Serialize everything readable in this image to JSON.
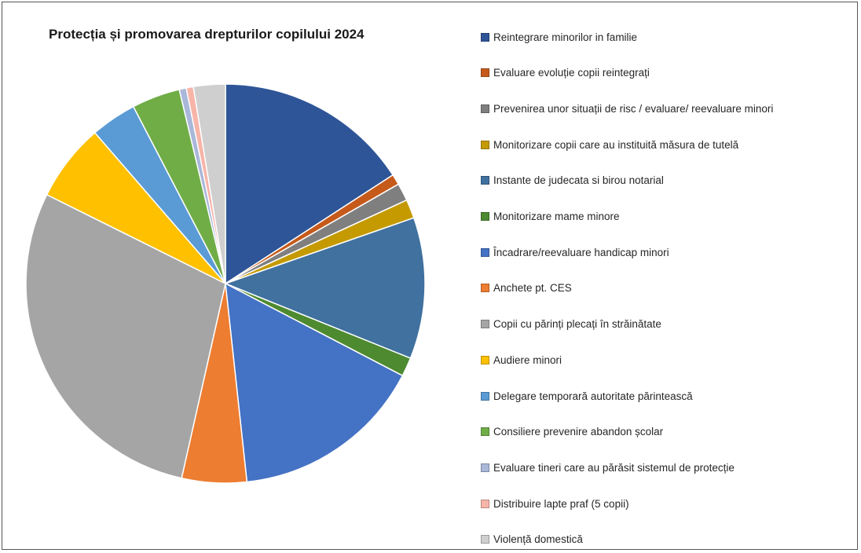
{
  "chart_data": {
    "type": "pie",
    "title": "Protecția și promovarea drepturilor copilului 2024",
    "series": [
      {
        "name": "Reintegrare minorilor in familie",
        "value": 16.6,
        "color": "#2e5597"
      },
      {
        "name": "Evaluare evoluție copii reintegrați",
        "value": 0.9,
        "color": "#c55a1b"
      },
      {
        "name": "Prevenirea unor situații de risc / evaluare/ reevaluare minori",
        "value": 1.5,
        "color": "#7f7f7f"
      },
      {
        "name": "Monitorizare copii care au instituită măsura de tutelă",
        "value": 1.6,
        "color": "#c49a00"
      },
      {
        "name": "Instante de judecata si birou notarial",
        "value": 12.0,
        "color": "#40719f"
      },
      {
        "name": "Monitorizare mame minore",
        "value": 1.6,
        "color": "#4e8a30"
      },
      {
        "name": "Încadrare/reevaluare handicap minori",
        "value": 16.4,
        "color": "#4472c4"
      },
      {
        "name": "Anchete pt. CES",
        "value": 5.5,
        "color": "#ed7d31"
      },
      {
        "name": "Copii cu părinți plecați în străinătate",
        "value": 30.2,
        "color": "#a5a5a5"
      },
      {
        "name": "Audiere minori",
        "value": 6.6,
        "color": "#ffc000"
      },
      {
        "name": "Delegare temporară autoritate părintească",
        "value": 3.9,
        "color": "#5b9bd5"
      },
      {
        "name": "Consiliere prevenire abandon școlar",
        "value": 4.1,
        "color": "#70ad47"
      },
      {
        "name": "Evaluare tineri care au părăsit sistemul de protecție",
        "value": 0.6,
        "color": "#a9b7d9"
      },
      {
        "name": "Distribuire lapte praf (5 copii)",
        "value": 0.6,
        "color": "#f7b4a8"
      },
      {
        "name": "Violență domestică",
        "value": 2.7,
        "color": "#cfcfcf"
      }
    ],
    "legend_position": "right"
  }
}
